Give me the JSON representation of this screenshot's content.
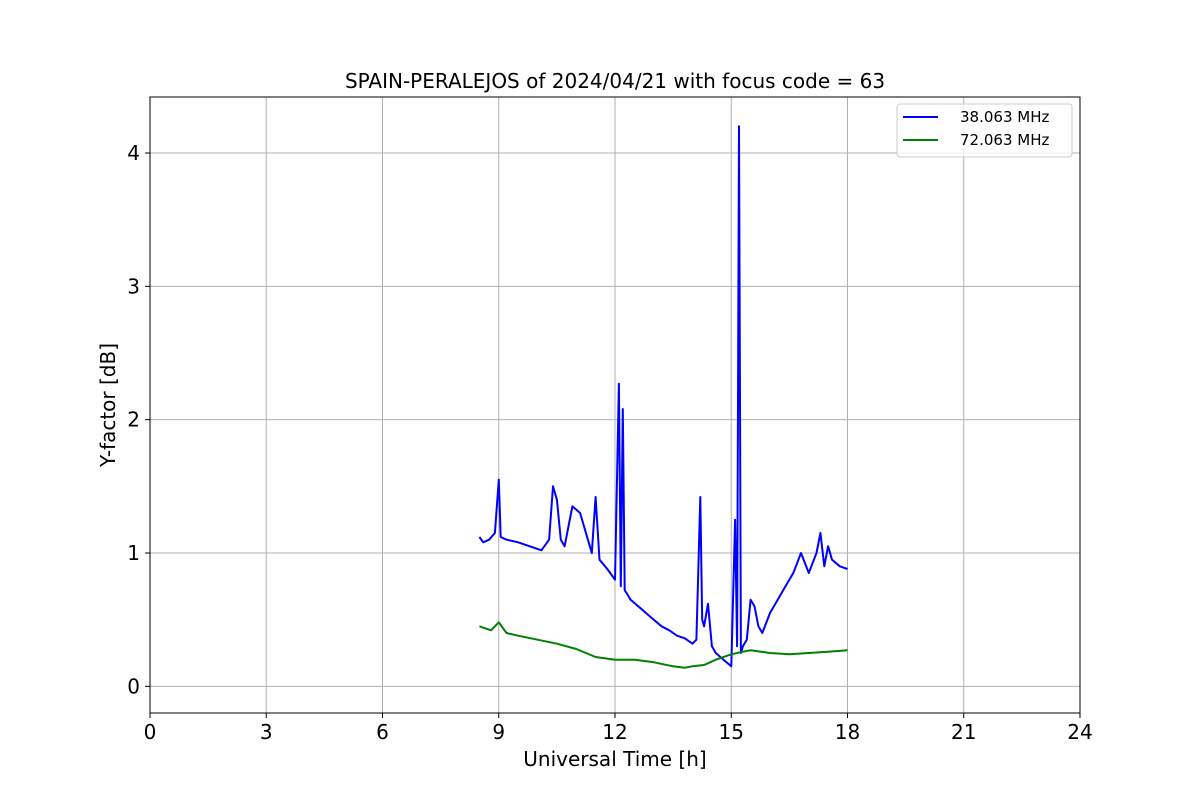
{
  "chart_data": {
    "type": "line",
    "title": "SPAIN-PERALEJOS of 2024/04/21 with focus code = 63",
    "xlabel": "Universal Time [h]",
    "ylabel": "Y-factor [dB]",
    "xlim": [
      0,
      24
    ],
    "ylim": [
      -0.2,
      4.42
    ],
    "xticks": [
      0,
      3,
      6,
      9,
      12,
      15,
      18,
      21,
      24
    ],
    "yticks": [
      0,
      1,
      2,
      3,
      4
    ],
    "grid": true,
    "legend_position": "top-right",
    "series": [
      {
        "name": "38.063 MHz",
        "color": "#0000ff",
        "x": [
          8.5,
          8.6,
          8.75,
          8.9,
          9.0,
          9.05,
          9.2,
          9.5,
          9.8,
          10.1,
          10.3,
          10.4,
          10.5,
          10.6,
          10.7,
          10.9,
          11.1,
          11.3,
          11.4,
          11.5,
          11.6,
          11.8,
          12.0,
          12.1,
          12.15,
          12.2,
          12.25,
          12.3,
          12.4,
          12.6,
          12.8,
          13.0,
          13.2,
          13.4,
          13.6,
          13.8,
          14.0,
          14.1,
          14.2,
          14.25,
          14.3,
          14.4,
          14.5,
          14.6,
          14.8,
          15.0,
          15.1,
          15.15,
          15.2,
          15.25,
          15.3,
          15.4,
          15.5,
          15.6,
          15.7,
          15.8,
          16.0,
          16.2,
          16.4,
          16.6,
          16.8,
          17.0,
          17.2,
          17.3,
          17.4,
          17.5,
          17.6,
          17.8,
          18.0
        ],
        "y": [
          1.12,
          1.08,
          1.1,
          1.15,
          1.55,
          1.12,
          1.1,
          1.08,
          1.05,
          1.02,
          1.1,
          1.5,
          1.4,
          1.1,
          1.05,
          1.35,
          1.3,
          1.1,
          1.0,
          1.42,
          0.95,
          0.88,
          0.8,
          2.27,
          0.75,
          2.08,
          0.72,
          0.7,
          0.65,
          0.6,
          0.55,
          0.5,
          0.45,
          0.42,
          0.38,
          0.36,
          0.32,
          0.35,
          1.42,
          0.5,
          0.45,
          0.62,
          0.3,
          0.25,
          0.2,
          0.15,
          1.25,
          0.3,
          4.2,
          0.25,
          0.3,
          0.35,
          0.65,
          0.6,
          0.45,
          0.4,
          0.55,
          0.65,
          0.75,
          0.85,
          1.0,
          0.85,
          1.0,
          1.15,
          0.9,
          1.05,
          0.95,
          0.9,
          0.88
        ]
      },
      {
        "name": "72.063 MHz",
        "color": "#008000",
        "x": [
          8.5,
          8.8,
          9.0,
          9.2,
          9.5,
          10.0,
          10.5,
          11.0,
          11.5,
          12.0,
          12.5,
          13.0,
          13.5,
          13.8,
          14.0,
          14.3,
          14.6,
          15.0,
          15.3,
          15.5,
          16.0,
          16.5,
          17.0,
          17.5,
          18.0
        ],
        "y": [
          0.45,
          0.42,
          0.48,
          0.4,
          0.38,
          0.35,
          0.32,
          0.28,
          0.22,
          0.2,
          0.2,
          0.18,
          0.15,
          0.14,
          0.15,
          0.16,
          0.2,
          0.24,
          0.26,
          0.27,
          0.25,
          0.24,
          0.25,
          0.26,
          0.27
        ]
      }
    ]
  }
}
